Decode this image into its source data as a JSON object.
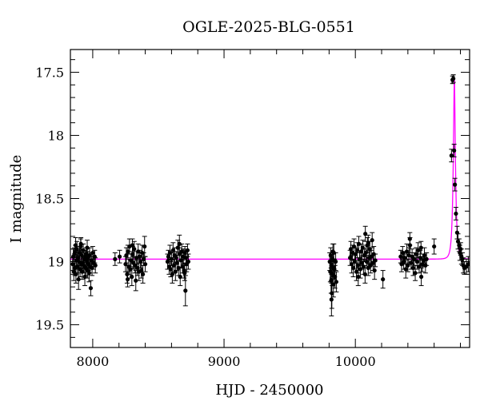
{
  "chart_data": {
    "type": "scatter",
    "title": "OGLE-2025-BLG-0551",
    "xlabel": "HJD - 2450000",
    "ylabel": "I magnitude",
    "xlim": [
      7830,
      10870
    ],
    "ylim": [
      19.68,
      17.32
    ],
    "y_inverted": true,
    "grid": false,
    "x_major_ticks": [
      8000,
      9000,
      10000
    ],
    "x_tick_labels": [
      "8000",
      "9000",
      "10000"
    ],
    "x_minor_step": 200,
    "y_major_ticks": [
      17.5,
      18,
      18.5,
      19,
      19.5
    ],
    "y_tick_labels": [
      "17.5",
      "18",
      "18.5",
      "19",
      "19.5"
    ],
    "y_minor_step": 0.1,
    "colors": {
      "data": "#000000",
      "model": "#ff00ff"
    },
    "model": {
      "name": "",
      "baseline_mag": 18.98,
      "t0": 10754,
      "peak_mag": 17.55,
      "tE": 18
    },
    "series": [
      {
        "name": "",
        "points": [
          [
            7848,
            19.02,
            0.05
          ],
          [
            7852,
            18.96,
            0.06
          ],
          [
            7856,
            19.08,
            0.07
          ],
          [
            7860,
            18.94,
            0.05
          ],
          [
            7864,
            19.05,
            0.06
          ],
          [
            7868,
            18.92,
            0.05
          ],
          [
            7872,
            19.1,
            0.07
          ],
          [
            7876,
            18.99,
            0.05
          ],
          [
            7880,
            18.9,
            0.06
          ],
          [
            7884,
            19.04,
            0.05
          ],
          [
            7888,
            18.97,
            0.06
          ],
          [
            7892,
            19.14,
            0.08
          ],
          [
            7896,
            19.0,
            0.05
          ],
          [
            7900,
            18.93,
            0.05
          ],
          [
            7904,
            19.06,
            0.06
          ],
          [
            7908,
            18.88,
            0.06
          ],
          [
            7912,
            19.02,
            0.05
          ],
          [
            7916,
            18.95,
            0.05
          ],
          [
            7920,
            19.08,
            0.06
          ],
          [
            7924,
            19.01,
            0.05
          ],
          [
            7928,
            18.91,
            0.05
          ],
          [
            7932,
            19.03,
            0.06
          ],
          [
            7936,
            18.98,
            0.05
          ],
          [
            7940,
            19.12,
            0.07
          ],
          [
            7944,
            18.96,
            0.05
          ],
          [
            7948,
            19.05,
            0.06
          ],
          [
            7952,
            18.94,
            0.05
          ],
          [
            7956,
            19.0,
            0.05
          ],
          [
            7960,
            19.07,
            0.06
          ],
          [
            7964,
            18.97,
            0.05
          ],
          [
            7968,
            19.02,
            0.05
          ],
          [
            7972,
            19.09,
            0.07
          ],
          [
            7976,
            18.95,
            0.06
          ],
          [
            7980,
            19.04,
            0.05
          ],
          [
            7985,
            19.21,
            0.06
          ],
          [
            7990,
            18.99,
            0.06
          ],
          [
            7995,
            19.05,
            0.06
          ],
          [
            8000,
            18.93,
            0.05
          ],
          [
            8005,
            19.01,
            0.05
          ],
          [
            8015,
            18.96,
            0.05
          ],
          [
            8020,
            19.03,
            0.06
          ],
          [
            7870,
            18.87,
            0.06
          ],
          [
            7910,
            18.86,
            0.05
          ],
          [
            7958,
            18.89,
            0.06
          ],
          [
            8170,
            18.98,
            0.05
          ],
          [
            8205,
            18.96,
            0.05
          ],
          [
            8250,
            19.02,
            0.06
          ],
          [
            8256,
            18.95,
            0.06
          ],
          [
            8262,
            19.1,
            0.07
          ],
          [
            8268,
            18.92,
            0.05
          ],
          [
            8274,
            19.04,
            0.06
          ],
          [
            8280,
            18.88,
            0.06
          ],
          [
            8286,
            19.06,
            0.07
          ],
          [
            8292,
            18.99,
            0.05
          ],
          [
            8298,
            19.12,
            0.07
          ],
          [
            8304,
            18.94,
            0.06
          ],
          [
            8310,
            19.01,
            0.05
          ],
          [
            8316,
            18.9,
            0.06
          ],
          [
            8322,
            19.03,
            0.06
          ],
          [
            8328,
            19.15,
            0.08
          ],
          [
            8334,
            18.97,
            0.05
          ],
          [
            8340,
            19.05,
            0.06
          ],
          [
            8346,
            18.92,
            0.06
          ],
          [
            8352,
            19.08,
            0.07
          ],
          [
            8358,
            18.96,
            0.05
          ],
          [
            8364,
            19.0,
            0.05
          ],
          [
            8370,
            19.07,
            0.06
          ],
          [
            8376,
            18.93,
            0.06
          ],
          [
            8382,
            19.1,
            0.07
          ],
          [
            8388,
            18.98,
            0.05
          ],
          [
            8395,
            18.88,
            0.08
          ],
          [
            8400,
            19.02,
            0.06
          ],
          [
            8266,
            19.14,
            0.06
          ],
          [
            8302,
            18.87,
            0.05
          ],
          [
            8570,
            19.0,
            0.06
          ],
          [
            8576,
            18.96,
            0.05
          ],
          [
            8582,
            19.04,
            0.06
          ],
          [
            8588,
            18.93,
            0.06
          ],
          [
            8594,
            19.06,
            0.06
          ],
          [
            8600,
            18.98,
            0.05
          ],
          [
            8606,
            19.1,
            0.07
          ],
          [
            8612,
            18.91,
            0.06
          ],
          [
            8618,
            19.03,
            0.05
          ],
          [
            8624,
            18.95,
            0.06
          ],
          [
            8630,
            19.08,
            0.07
          ],
          [
            8636,
            18.97,
            0.05
          ],
          [
            8642,
            19.01,
            0.06
          ],
          [
            8648,
            18.89,
            0.06
          ],
          [
            8654,
            19.05,
            0.06
          ],
          [
            8660,
            18.94,
            0.05
          ],
          [
            8666,
            19.12,
            0.07
          ],
          [
            8672,
            18.99,
            0.06
          ],
          [
            8678,
            18.92,
            0.06
          ],
          [
            8684,
            19.04,
            0.05
          ],
          [
            8690,
            18.96,
            0.06
          ],
          [
            8696,
            19.07,
            0.06
          ],
          [
            8702,
            18.93,
            0.05
          ],
          [
            8706,
            19.23,
            0.12
          ],
          [
            8710,
            18.97,
            0.06
          ],
          [
            8715,
            19.02,
            0.06
          ],
          [
            8722,
            18.91,
            0.05
          ],
          [
            8728,
            19.0,
            0.06
          ],
          [
            8660,
            18.86,
            0.07
          ],
          [
            8700,
            19.09,
            0.06
          ],
          [
            9805,
            19.0,
            0.07
          ],
          [
            9809,
            19.08,
            0.08
          ],
          [
            9812,
            18.95,
            0.06
          ],
          [
            9815,
            19.15,
            0.1
          ],
          [
            9818,
            19.03,
            0.07
          ],
          [
            9821,
            19.25,
            0.12
          ],
          [
            9824,
            19.1,
            0.09
          ],
          [
            9827,
            18.98,
            0.06
          ],
          [
            9830,
            19.05,
            0.07
          ],
          [
            9833,
            19.18,
            0.1
          ],
          [
            9836,
            18.93,
            0.07
          ],
          [
            9840,
            19.06,
            0.08
          ],
          [
            9845,
            19.12,
            0.09
          ],
          [
            9850,
            19.0,
            0.07
          ],
          [
            9855,
            19.16,
            0.08
          ],
          [
            9818,
            19.3,
            0.13
          ],
          [
            9829,
            18.92,
            0.06
          ],
          [
            9960,
            18.97,
            0.06
          ],
          [
            9966,
            18.9,
            0.06
          ],
          [
            9972,
            19.02,
            0.07
          ],
          [
            9978,
            18.93,
            0.06
          ],
          [
            9984,
            19.05,
            0.07
          ],
          [
            9990,
            18.88,
            0.06
          ],
          [
            9996,
            19.0,
            0.06
          ],
          [
            10002,
            18.94,
            0.05
          ],
          [
            10008,
            19.08,
            0.07
          ],
          [
            10014,
            18.91,
            0.06
          ],
          [
            10020,
            19.03,
            0.06
          ],
          [
            10026,
            18.86,
            0.06
          ],
          [
            10032,
            18.98,
            0.05
          ],
          [
            10038,
            19.06,
            0.07
          ],
          [
            10044,
            18.92,
            0.06
          ],
          [
            10050,
            19.01,
            0.05
          ],
          [
            10056,
            18.89,
            0.06
          ],
          [
            10062,
            19.04,
            0.06
          ],
          [
            10068,
            18.95,
            0.05
          ],
          [
            10074,
            19.1,
            0.07
          ],
          [
            10080,
            18.93,
            0.06
          ],
          [
            10086,
            19.0,
            0.05
          ],
          [
            10092,
            18.87,
            0.06
          ],
          [
            10098,
            19.05,
            0.06
          ],
          [
            10104,
            18.97,
            0.05
          ],
          [
            10110,
            18.9,
            0.06
          ],
          [
            10116,
            19.03,
            0.06
          ],
          [
            10122,
            18.96,
            0.05
          ],
          [
            10128,
            18.83,
            0.06
          ],
          [
            10135,
            19.01,
            0.06
          ],
          [
            10140,
            18.94,
            0.06
          ],
          [
            10146,
            19.07,
            0.07
          ],
          [
            10152,
            18.99,
            0.05
          ],
          [
            10076,
            18.78,
            0.06
          ],
          [
            10022,
            19.12,
            0.07
          ],
          [
            10098,
            18.85,
            0.06
          ],
          [
            10210,
            19.14,
            0.07
          ],
          [
            10345,
            18.96,
            0.05
          ],
          [
            10352,
            19.02,
            0.06
          ],
          [
            10360,
            18.93,
            0.05
          ],
          [
            10368,
            19.0,
            0.06
          ],
          [
            10376,
            18.97,
            0.05
          ],
          [
            10384,
            19.06,
            0.07
          ],
          [
            10392,
            18.92,
            0.06
          ],
          [
            10400,
            19.03,
            0.05
          ],
          [
            10408,
            18.95,
            0.06
          ],
          [
            10416,
            18.87,
            0.06
          ],
          [
            10424,
            19.01,
            0.05
          ],
          [
            10432,
            18.96,
            0.06
          ],
          [
            10440,
            19.05,
            0.06
          ],
          [
            10448,
            18.98,
            0.05
          ],
          [
            10456,
            19.09,
            0.06
          ],
          [
            10462,
            18.94,
            0.05
          ],
          [
            10470,
            19.0,
            0.06
          ],
          [
            10478,
            18.91,
            0.06
          ],
          [
            10486,
            19.04,
            0.05
          ],
          [
            10494,
            18.97,
            0.06
          ],
          [
            10502,
            19.12,
            0.07
          ],
          [
            10510,
            19.02,
            0.06
          ],
          [
            10518,
            18.99,
            0.05
          ],
          [
            10526,
            18.95,
            0.06
          ],
          [
            10534,
            19.03,
            0.06
          ],
          [
            10542,
            18.98,
            0.05
          ],
          [
            10415,
            18.82,
            0.05
          ],
          [
            10500,
            18.89,
            0.05
          ],
          [
            10600,
            18.88,
            0.06
          ],
          [
            10732,
            18.16,
            0.05
          ],
          [
            10740,
            17.56,
            0.03
          ],
          [
            10746,
            17.55,
            0.03
          ],
          [
            10752,
            18.12,
            0.05
          ],
          [
            10758,
            18.39,
            0.05
          ],
          [
            10766,
            18.62,
            0.05
          ],
          [
            10775,
            18.77,
            0.05
          ],
          [
            10782,
            18.84,
            0.06
          ],
          [
            10790,
            18.87,
            0.05
          ],
          [
            10796,
            18.93,
            0.06
          ],
          [
            10802,
            18.9,
            0.05
          ],
          [
            10808,
            18.96,
            0.06
          ],
          [
            10815,
            18.98,
            0.05
          ],
          [
            10822,
            19.03,
            0.06
          ],
          [
            10830,
            19.05,
            0.05
          ],
          [
            10845,
            19.04,
            0.06
          ],
          [
            10860,
            19.02,
            0.06
          ]
        ]
      }
    ]
  }
}
